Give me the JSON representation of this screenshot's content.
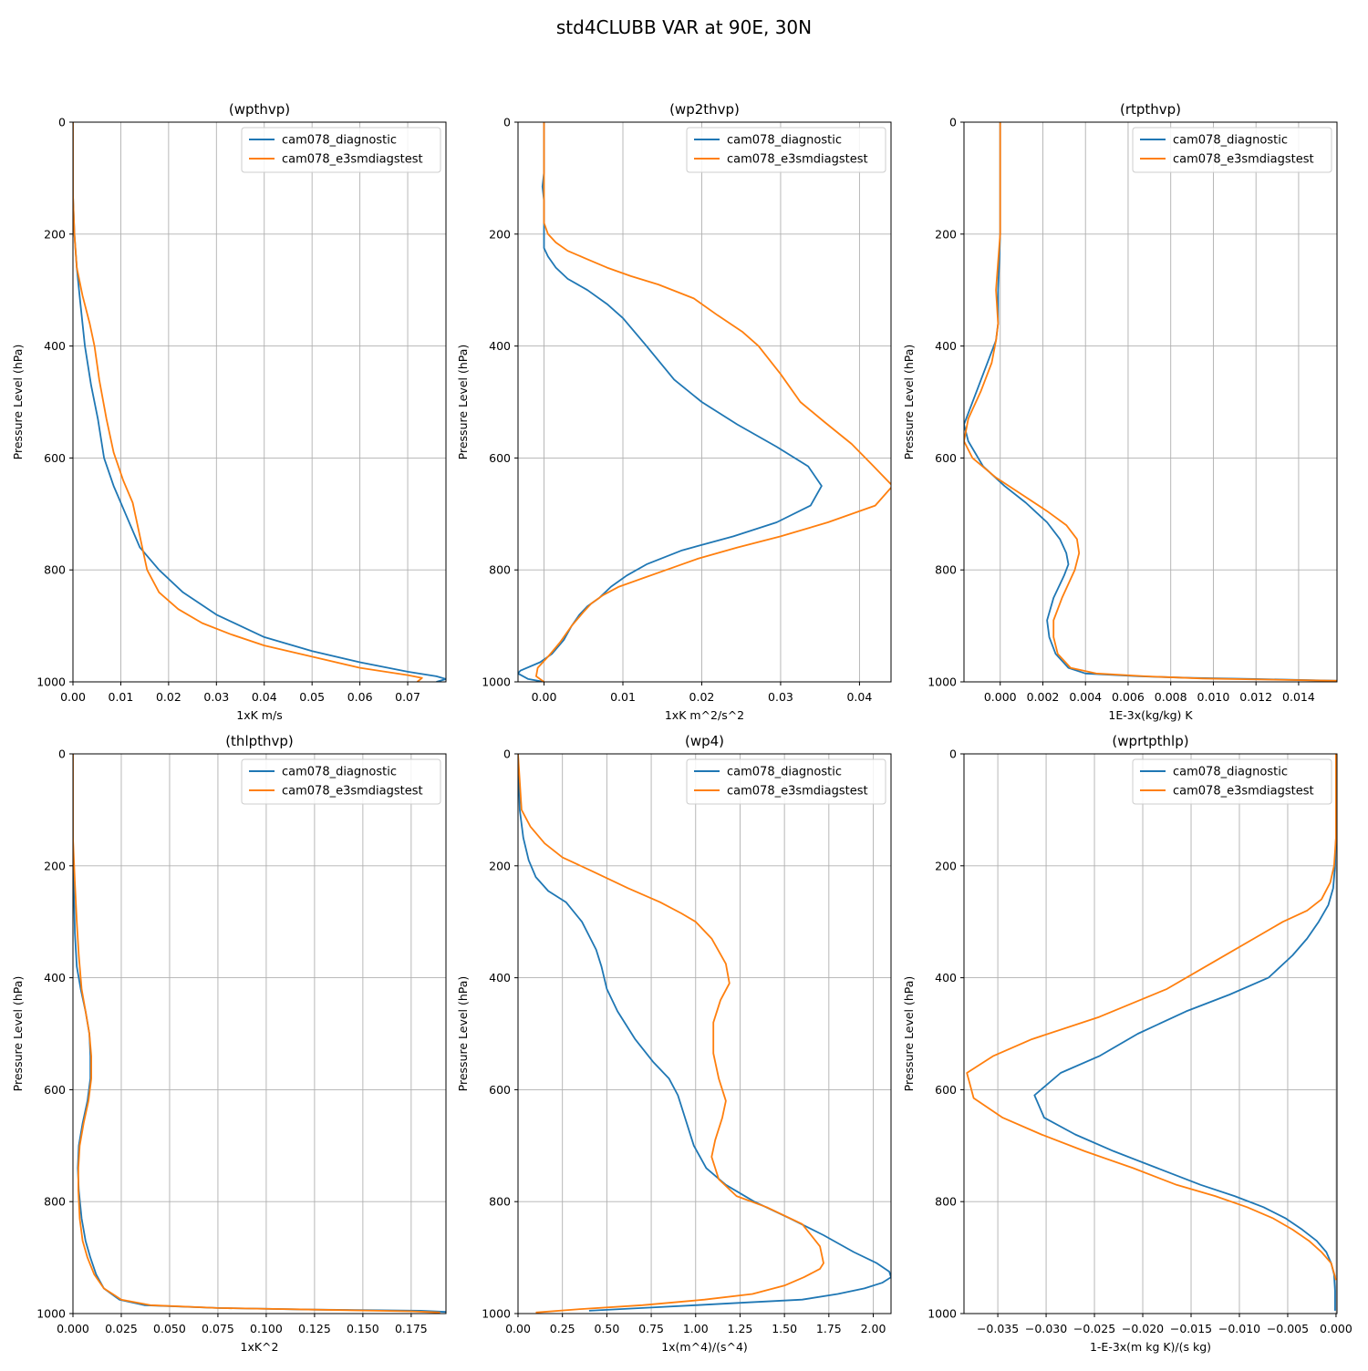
{
  "figure": {
    "title": "std4CLUBB VAR at 90E, 30N"
  },
  "colors": {
    "series_a": "#1f77b4",
    "series_b": "#ff7f0e"
  },
  "chart_data": [
    {
      "type": "line",
      "title": "(wpthvp)",
      "xlabel": "1xK m/s",
      "ylabel": "Pressure Level (hPa)",
      "xlim": [
        0,
        0.078
      ],
      "ylim": [
        1000,
        0
      ],
      "xticks": [
        0,
        0.01,
        0.02,
        0.03,
        0.04,
        0.05,
        0.06,
        0.07
      ],
      "xtick_labels": [
        "0.00",
        "0.01",
        "0.02",
        "0.03",
        "0.04",
        "0.05",
        "0.06",
        "0.07"
      ],
      "yticks": [
        0,
        200,
        400,
        600,
        800,
        1000
      ],
      "ytick_labels": [
        "0",
        "200",
        "400",
        "600",
        "800",
        "1000"
      ],
      "grid": true,
      "legend_loc": "upper right",
      "series": [
        {
          "name": "cam078_diagnostic",
          "x": [
            0,
            0,
            0.0003,
            0.0008,
            0.0015,
            0.0025,
            0.0038,
            0.0052,
            0.0065,
            0.0085,
            0.011,
            0.014,
            0.018,
            0.023,
            0.03,
            0.04,
            0.05,
            0.06,
            0.07,
            0.076,
            0.078,
            0.076
          ],
          "y": [
            0,
            130,
            200,
            260,
            320,
            400,
            470,
            530,
            600,
            650,
            700,
            760,
            800,
            840,
            880,
            920,
            945,
            965,
            982,
            990,
            995,
            1000
          ]
        },
        {
          "name": "cam078_e3smdiagstest",
          "x": [
            0,
            0,
            0.0003,
            0.0008,
            0.002,
            0.0035,
            0.0045,
            0.0055,
            0.007,
            0.0085,
            0.0105,
            0.0125,
            0.0135,
            0.0145,
            0.0155,
            0.018,
            0.022,
            0.027,
            0.033,
            0.04,
            0.05,
            0.06,
            0.07,
            0.073,
            0.072
          ],
          "y": [
            0,
            130,
            200,
            260,
            310,
            360,
            400,
            460,
            530,
            590,
            640,
            680,
            720,
            760,
            800,
            840,
            870,
            895,
            915,
            935,
            955,
            975,
            988,
            993,
            1000
          ]
        }
      ]
    },
    {
      "type": "line",
      "title": "(wp2thvp)",
      "xlabel": "1xK m^2/s^2",
      "ylabel": "Pressure Level (hPa)",
      "xlim": [
        -0.0033,
        0.044
      ],
      "ylim": [
        1000,
        0
      ],
      "xticks": [
        0,
        0.01,
        0.02,
        0.03,
        0.04
      ],
      "xtick_labels": [
        "0.00",
        "0.01",
        "0.02",
        "0.03",
        "0.04"
      ],
      "yticks": [
        0,
        200,
        400,
        600,
        800,
        1000
      ],
      "ytick_labels": [
        "0",
        "200",
        "400",
        "600",
        "800",
        "1000"
      ],
      "grid": true,
      "legend_loc": "upper right",
      "series": [
        {
          "name": "cam078_diagnostic",
          "x": [
            0,
            0,
            -0.0002,
            0,
            0,
            0.0005,
            0.0015,
            0.003,
            0.0055,
            0.008,
            0.01,
            0.013,
            0.0165,
            0.02,
            0.0245,
            0.0295,
            0.0335,
            0.0352,
            0.0338,
            0.0295,
            0.024,
            0.0175,
            0.013,
            0.0105,
            0.0085,
            0.007,
            0.0055,
            0.0045,
            0.0035,
            0.0025,
            0.001,
            -0.0005,
            -0.003,
            -0.0033,
            -0.002,
            0
          ],
          "y": [
            0,
            90,
            115,
            140,
            225,
            240,
            260,
            280,
            300,
            325,
            350,
            400,
            460,
            500,
            540,
            580,
            615,
            650,
            685,
            715,
            740,
            765,
            790,
            810,
            830,
            850,
            865,
            880,
            900,
            925,
            950,
            965,
            980,
            985,
            995,
            1000
          ]
        },
        {
          "name": "cam078_e3smdiagstest",
          "x": [
            0,
            0,
            0.0005,
            0.0015,
            0.003,
            0.0055,
            0.008,
            0.011,
            0.0145,
            0.019,
            0.022,
            0.0252,
            0.0272,
            0.03,
            0.0325,
            0.0355,
            0.039,
            0.0418,
            0.0442,
            0.042,
            0.036,
            0.03,
            0.0245,
            0.0195,
            0.0155,
            0.0125,
            0.0095,
            0.0075,
            0.006,
            0.005,
            0.0035,
            0.002,
            0.0005,
            -0.0008,
            -0.001,
            0
          ],
          "y": [
            0,
            180,
            200,
            215,
            230,
            245,
            260,
            275,
            290,
            315,
            345,
            375,
            400,
            450,
            500,
            535,
            575,
            615,
            650,
            685,
            715,
            740,
            760,
            780,
            800,
            815,
            830,
            845,
            860,
            875,
            900,
            930,
            955,
            975,
            990,
            1000
          ]
        }
      ]
    },
    {
      "type": "line",
      "title": "(rtpthvp)",
      "xlabel": "1E-3x(kg/kg) K",
      "ylabel": "Pressure Level (hPa)",
      "xlim": [
        -0.0017,
        0.0158
      ],
      "ylim": [
        1000,
        0
      ],
      "xticks": [
        0,
        0.002,
        0.004,
        0.006,
        0.008,
        0.01,
        0.012,
        0.014
      ],
      "xtick_labels": [
        "0.000",
        "0.002",
        "0.004",
        "0.006",
        "0.008",
        "0.010",
        "0.012",
        "0.014"
      ],
      "yticks": [
        0,
        200,
        400,
        600,
        800,
        1000
      ],
      "ytick_labels": [
        "0",
        "200",
        "400",
        "600",
        "800",
        "1000"
      ],
      "grid": true,
      "legend_loc": "upper right",
      "series": [
        {
          "name": "cam078_diagnostic",
          "x": [
            0,
            0,
            -0.0001,
            -0.0001,
            -0.0002,
            -0.0005,
            -0.001,
            -0.0015,
            -0.0017,
            -0.0015,
            -0.0008,
            0.0002,
            0.0012,
            0.0022,
            0.0028,
            0.0031,
            0.0032,
            0.003,
            0.0025,
            0.0022,
            0.0023,
            0.0026,
            0.0032,
            0.004,
            0.0065,
            0.009,
            0.012,
            0.0158
          ],
          "y": [
            0,
            200,
            300,
            360,
            390,
            420,
            470,
            520,
            540,
            570,
            615,
            650,
            680,
            715,
            745,
            770,
            790,
            810,
            850,
            890,
            920,
            950,
            975,
            985,
            990,
            993,
            995,
            998
          ]
        },
        {
          "name": "cam078_e3smdiagstest",
          "x": [
            0,
            0,
            -0.0002,
            -0.0001,
            -0.0002,
            -0.0004,
            -0.0009,
            -0.0015,
            -0.0017,
            -0.0013,
            -0.0002,
            0.001,
            0.0022,
            0.0031,
            0.0036,
            0.0037,
            0.0035,
            0.0029,
            0.0025,
            0.0025,
            0.0027,
            0.0033,
            0.0045,
            0.0068,
            0.0095,
            0.0125,
            0.0158
          ],
          "y": [
            0,
            200,
            300,
            360,
            390,
            430,
            480,
            530,
            570,
            600,
            635,
            665,
            695,
            720,
            745,
            770,
            800,
            850,
            890,
            920,
            950,
            975,
            985,
            990,
            994,
            996,
            998
          ]
        }
      ]
    },
    {
      "type": "line",
      "title": "(thlpthvp)",
      "xlabel": "1xK^2",
      "ylabel": "Pressure Level (hPa)",
      "xlim": [
        0,
        0.193
      ],
      "ylim": [
        1000,
        0
      ],
      "xticks": [
        0,
        0.025,
        0.05,
        0.075,
        0.1,
        0.125,
        0.15,
        0.175
      ],
      "xtick_labels": [
        "0.000",
        "0.025",
        "0.050",
        "0.075",
        "0.100",
        "0.125",
        "0.150",
        "0.175"
      ],
      "yticks": [
        0,
        200,
        400,
        600,
        800,
        1000
      ],
      "ytick_labels": [
        "0",
        "200",
        "400",
        "600",
        "800",
        "1000"
      ],
      "grid": true,
      "legend_loc": "upper right",
      "series": [
        {
          "name": "cam078_diagnostic",
          "x": [
            0,
            0,
            0.0005,
            0.001,
            0.002,
            0.004,
            0.0065,
            0.0085,
            0.009,
            0.009,
            0.0075,
            0.005,
            0.003,
            0.0025,
            0.003,
            0.0045,
            0.0065,
            0.009,
            0.012,
            0.016,
            0.024,
            0.037,
            0.075,
            0.125,
            0.18,
            0.193
          ],
          "y": [
            0,
            150,
            250,
            320,
            380,
            420,
            460,
            500,
            540,
            580,
            620,
            660,
            700,
            740,
            780,
            830,
            870,
            900,
            930,
            955,
            975,
            985,
            990,
            993,
            995,
            997
          ]
        },
        {
          "name": "cam078_e3smdiagstest",
          "x": [
            0,
            0,
            0.001,
            0.002,
            0.003,
            0.0045,
            0.0065,
            0.0085,
            0.0095,
            0.0095,
            0.008,
            0.0055,
            0.0035,
            0.0028,
            0.0028,
            0.0035,
            0.005,
            0.0075,
            0.011,
            0.016,
            0.025,
            0.04,
            0.075,
            0.125,
            0.175,
            0.19
          ],
          "y": [
            0,
            150,
            230,
            300,
            360,
            420,
            460,
            500,
            540,
            580,
            620,
            660,
            700,
            740,
            780,
            830,
            870,
            900,
            930,
            955,
            975,
            985,
            990,
            993,
            996,
            998
          ]
        }
      ]
    },
    {
      "type": "line",
      "title": "(wp4)",
      "xlabel": "1x(m^4)/(s^4)",
      "ylabel": "Pressure Level (hPa)",
      "xlim": [
        0,
        2.1
      ],
      "ylim": [
        1000,
        0
      ],
      "xticks": [
        0,
        0.25,
        0.5,
        0.75,
        1.0,
        1.25,
        1.5,
        1.75,
        2.0
      ],
      "xtick_labels": [
        "0.00",
        "0.25",
        "0.50",
        "0.75",
        "1.00",
        "1.25",
        "1.50",
        "1.75",
        "2.00"
      ],
      "yticks": [
        0,
        200,
        400,
        600,
        800,
        1000
      ],
      "ytick_labels": [
        "0",
        "200",
        "400",
        "600",
        "800",
        "1000"
      ],
      "grid": true,
      "legend_loc": "upper right",
      "series": [
        {
          "name": "cam078_diagnostic",
          "x": [
            0,
            0.01,
            0.03,
            0.06,
            0.1,
            0.17,
            0.27,
            0.36,
            0.4,
            0.44,
            0.47,
            0.5,
            0.56,
            0.66,
            0.76,
            0.85,
            0.9,
            0.94,
            0.99,
            1.06,
            1.17,
            1.33,
            1.53,
            1.72,
            1.89,
            2.02,
            2.09,
            2.1,
            2.05,
            1.95,
            1.8,
            1.6,
            1.3,
            1.0,
            0.7,
            0.4
          ],
          "y": [
            0,
            100,
            150,
            190,
            220,
            245,
            265,
            300,
            325,
            350,
            380,
            420,
            460,
            510,
            550,
            580,
            610,
            650,
            700,
            740,
            770,
            800,
            830,
            860,
            890,
            910,
            925,
            935,
            945,
            955,
            965,
            975,
            980,
            985,
            990,
            995
          ]
        },
        {
          "name": "cam078_e3smdiagstest",
          "x": [
            0,
            0.02,
            0.07,
            0.15,
            0.25,
            0.42,
            0.62,
            0.8,
            0.92,
            1.0,
            1.09,
            1.17,
            1.19,
            1.14,
            1.1,
            1.1,
            1.13,
            1.17,
            1.15,
            1.11,
            1.09,
            1.13,
            1.23,
            1.4,
            1.6,
            1.7,
            1.72,
            1.7,
            1.61,
            1.5,
            1.32,
            1.05,
            0.7,
            0.35,
            0.1
          ],
          "y": [
            0,
            100,
            130,
            160,
            185,
            210,
            240,
            265,
            285,
            300,
            330,
            375,
            410,
            440,
            480,
            535,
            580,
            620,
            650,
            690,
            720,
            760,
            790,
            810,
            840,
            880,
            910,
            920,
            935,
            950,
            965,
            975,
            985,
            992,
            998
          ]
        }
      ]
    },
    {
      "type": "line",
      "title": "(wprtpthlp)",
      "xlabel": "1-E-3x(m kg K)/(s kg)",
      "ylabel": "Pressure Level (hPa)",
      "xlim": [
        -0.0385,
        0.0001
      ],
      "ylim": [
        1000,
        0
      ],
      "xticks": [
        -0.035,
        -0.03,
        -0.025,
        -0.02,
        -0.015,
        -0.01,
        -0.005,
        0
      ],
      "xtick_labels": [
        "−0.035",
        "−0.030",
        "−0.025",
        "−0.020",
        "−0.015",
        "−0.010",
        "−0.005",
        "0.000"
      ],
      "yticks": [
        0,
        200,
        400,
        600,
        800,
        1000
      ],
      "ytick_labels": [
        "0",
        "200",
        "400",
        "600",
        "800",
        "1000"
      ],
      "grid": true,
      "legend_loc": "upper right",
      "series": [
        {
          "name": "cam078_diagnostic",
          "x": [
            0,
            0,
            -0.0001,
            -0.0003,
            -0.0008,
            -0.0018,
            -0.003,
            -0.0045,
            -0.007,
            -0.011,
            -0.0155,
            -0.0205,
            -0.0245,
            -0.0285,
            -0.0312,
            -0.0302,
            -0.027,
            -0.023,
            -0.0185,
            -0.014,
            -0.0105,
            -0.0075,
            -0.0052,
            -0.0035,
            -0.002,
            -0.001,
            -0.0005,
            -0.0002,
            -0.0001,
            -0.0001
          ],
          "y": [
            0,
            150,
            200,
            240,
            270,
            300,
            330,
            360,
            400,
            430,
            460,
            500,
            540,
            570,
            610,
            650,
            680,
            710,
            740,
            770,
            790,
            810,
            830,
            850,
            870,
            890,
            910,
            930,
            960,
            995
          ]
        },
        {
          "name": "cam078_e3smdiagstest",
          "x": [
            0,
            0,
            -0.0002,
            -0.0006,
            -0.0015,
            -0.003,
            -0.0055,
            -0.0085,
            -0.0125,
            -0.0175,
            -0.0245,
            -0.0315,
            -0.0355,
            -0.0382,
            -0.0375,
            -0.0345,
            -0.0305,
            -0.026,
            -0.021,
            -0.0165,
            -0.0125,
            -0.0092,
            -0.0065,
            -0.0045,
            -0.0028,
            -0.0015,
            -0.0005,
            0
          ],
          "y": [
            0,
            150,
            200,
            230,
            260,
            280,
            300,
            330,
            370,
            420,
            470,
            510,
            540,
            570,
            615,
            650,
            680,
            710,
            740,
            770,
            790,
            810,
            830,
            850,
            870,
            890,
            910,
            940
          ]
        }
      ]
    }
  ]
}
